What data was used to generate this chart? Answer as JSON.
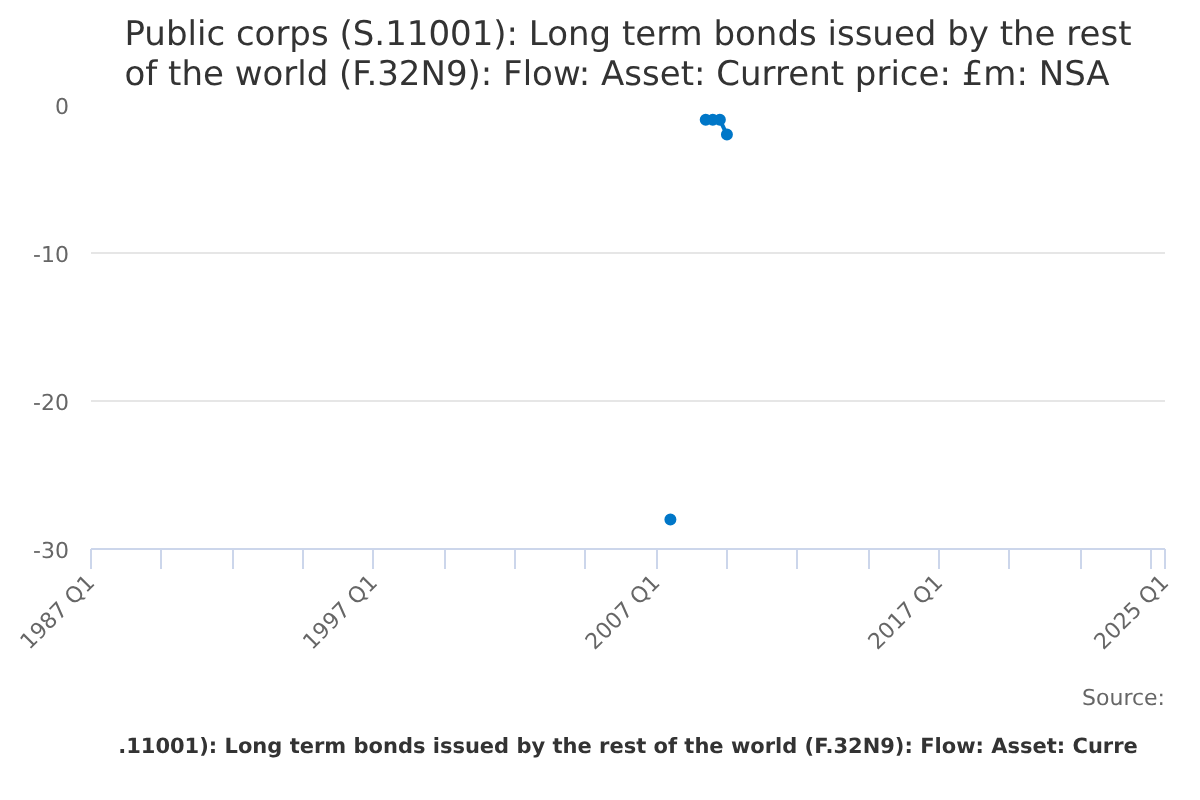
{
  "chart_data": {
    "type": "line",
    "title": "Public corps (S.11001): Long term bonds issued by the rest\nof the world (F.32N9): Flow: Asset: Current price: £m: NSA",
    "x": [
      "2007-07",
      "2007-10",
      "2008-01",
      "2008-04",
      "2008-07",
      "2008-10",
      "2009-01",
      "2009-04",
      "2009-07"
    ],
    "series": [
      {
        "name": ".11001): Long term bonds issued by the rest of the world (F.32N9): Flow: Asset: Curre",
        "color": "#0077c8",
        "values": [
          -28,
          null,
          null,
          null,
          null,
          -1,
          -1,
          -1,
          -2
        ]
      }
    ],
    "xlim": [
      "1987-01",
      "2025-01"
    ],
    "xticks": [
      {
        "value": "1987-01",
        "label": "1987 Q1"
      },
      {
        "value": "1989-07",
        "label": null
      },
      {
        "value": "1992-01",
        "label": null
      },
      {
        "value": "1994-07",
        "label": null
      },
      {
        "value": "1997-01",
        "label": "1997 Q1"
      },
      {
        "value": "1999-07",
        "label": null
      },
      {
        "value": "2002-01",
        "label": null
      },
      {
        "value": "2004-07",
        "label": null
      },
      {
        "value": "2007-01",
        "label": "2007 Q1"
      },
      {
        "value": "2009-07",
        "label": null
      },
      {
        "value": "2012-01",
        "label": null
      },
      {
        "value": "2014-07",
        "label": null
      },
      {
        "value": "2017-01",
        "label": "2017 Q1"
      },
      {
        "value": "2019-07",
        "label": null
      },
      {
        "value": "2022-01",
        "label": null
      },
      {
        "value": "2024-07",
        "label": null
      },
      {
        "value": "2025-01",
        "label": "2025 Q1"
      }
    ],
    "ylim": [
      -30,
      0
    ],
    "yticks": [
      0,
      -10,
      -20,
      -30
    ],
    "grid": "y",
    "marker": "circle",
    "line_style": "solid",
    "annotations": [
      "Source:"
    ]
  }
}
